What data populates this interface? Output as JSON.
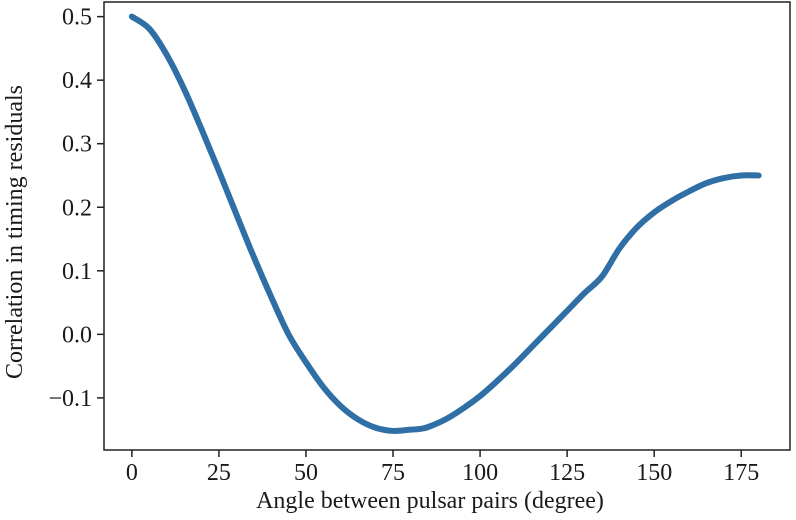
{
  "chart_data": {
    "type": "line",
    "title": "",
    "xlabel": "Angle between pulsar pairs (degree)",
    "ylabel": "Correlation in timing residuals",
    "xlim": [
      -8,
      189
    ],
    "ylim": [
      -0.182,
      0.523
    ],
    "xticks": [
      0,
      25,
      50,
      75,
      100,
      125,
      150,
      175
    ],
    "yticks": [
      -0.1,
      0.0,
      0.1,
      0.2,
      0.3,
      0.4,
      0.5
    ],
    "xtick_labels": [
      "0",
      "25",
      "50",
      "75",
      "100",
      "125",
      "150",
      "175"
    ],
    "ytick_labels": [
      "−0.1",
      "0.0",
      "0.1",
      "0.2",
      "0.3",
      "0.4",
      "0.5"
    ],
    "grid": false,
    "legend": "none",
    "series": [
      {
        "color": "#2f6fa6",
        "x": [
          0,
          5,
          10,
          15,
          20,
          25,
          30,
          35,
          40,
          45,
          50,
          55,
          60,
          65,
          70,
          75,
          80,
          82.5,
          85,
          90,
          95,
          100,
          105,
          110,
          115,
          120,
          125,
          130,
          135,
          140,
          145,
          150,
          155,
          160,
          165,
          170,
          175,
          180
        ],
        "y": [
          0.5,
          0.481,
          0.44,
          0.386,
          0.323,
          0.257,
          0.189,
          0.122,
          0.059,
          0.0,
          -0.044,
          -0.083,
          -0.113,
          -0.134,
          -0.147,
          -0.152,
          -0.15,
          -0.149,
          -0.146,
          -0.134,
          -0.117,
          -0.097,
          -0.073,
          -0.047,
          -0.019,
          0.009,
          0.037,
          0.065,
          0.091,
          0.135,
          0.168,
          0.192,
          0.21,
          0.225,
          0.238,
          0.246,
          0.25,
          0.25
        ]
      }
    ]
  }
}
